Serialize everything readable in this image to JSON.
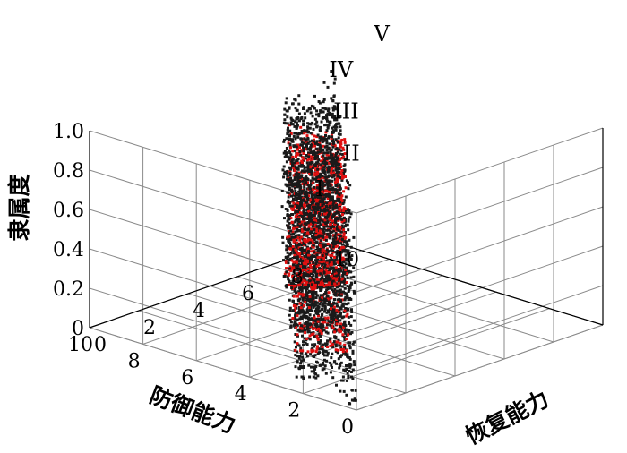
{
  "chart_data": {
    "type": "scatter",
    "title": "",
    "zlabel": "隶属度",
    "xlabel": "防御能力",
    "ylabel": "恢复能力",
    "zticks": [
      "0",
      "0.2",
      "0.4",
      "0.6",
      "0.8",
      "1.0"
    ],
    "xticks": [
      "0",
      "2",
      "4",
      "6",
      "8",
      "10"
    ],
    "yticks": [
      "0",
      "2",
      "4",
      "6",
      "8",
      "10"
    ],
    "xlim": [
      0,
      10
    ],
    "ylim": [
      0,
      10
    ],
    "zlim": [
      0,
      1
    ],
    "grid": true,
    "series": [
      {
        "name": "I",
        "color": "#1a1a1a",
        "shape": "decreasing",
        "a": 0,
        "b": 2
      },
      {
        "name": "II",
        "color": "#1a1a1a",
        "shape": "triangular",
        "a": 0,
        "b": 2.5,
        "c": 5
      },
      {
        "name": "III",
        "color": "#1a1a1a",
        "shape": "triangular",
        "a": 2.5,
        "b": 5,
        "c": 7.5
      },
      {
        "name": "",
        "color": "#e01010",
        "shape": "triangular",
        "a": 3.5,
        "b": 5.5,
        "c": 7.5
      },
      {
        "name": "IV",
        "color": "#1a1a1a",
        "shape": "triangular",
        "a": 5,
        "b": 7.5,
        "c": 10
      },
      {
        "name": "V",
        "color": "#1a1a1a",
        "shape": "increasing",
        "a": 8,
        "b": 10
      }
    ]
  }
}
